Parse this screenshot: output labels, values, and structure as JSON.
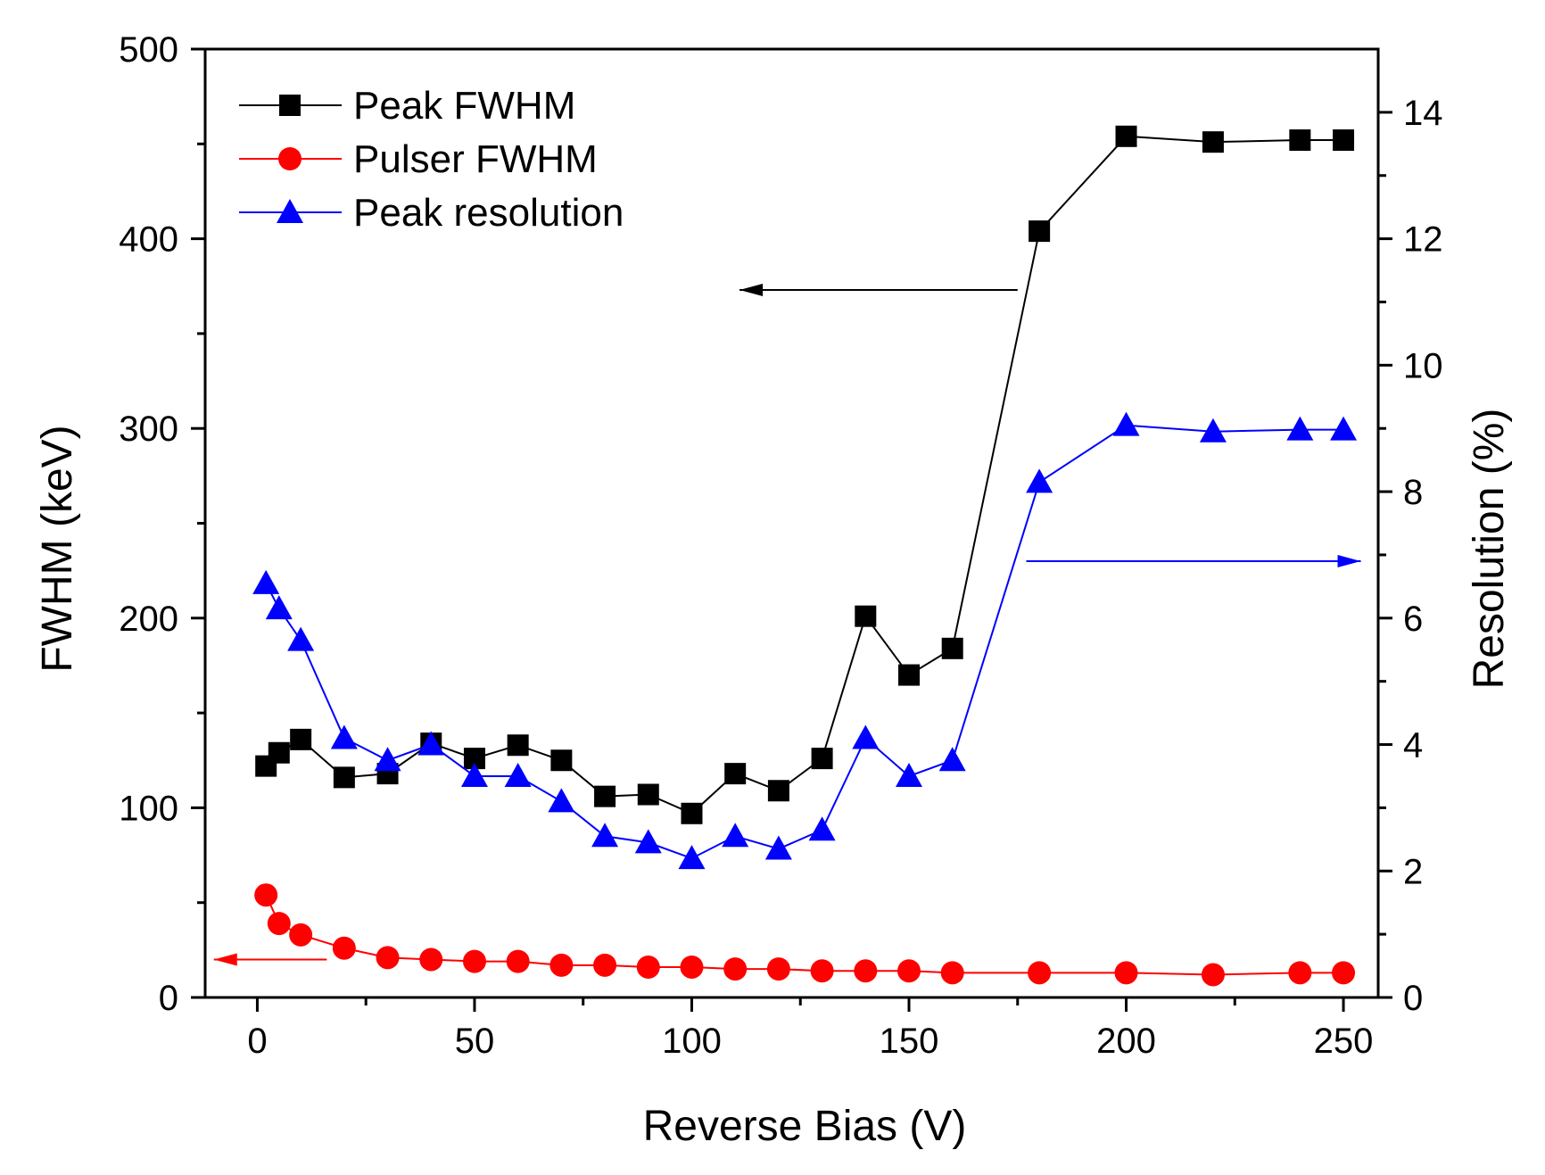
{
  "chart_data": {
    "type": "line",
    "title": "",
    "xlabel": "Reverse Bias (V)",
    "ylabel": "FWHM (keV)",
    "y2label": "Resolution (%)",
    "xlim": [
      -12,
      258
    ],
    "ylim": [
      0,
      500
    ],
    "y2lim": [
      0,
      15
    ],
    "x_ticks": [
      0,
      50,
      100,
      150,
      200,
      250
    ],
    "y_ticks": [
      0,
      100,
      200,
      300,
      400,
      500
    ],
    "y2_ticks": [
      0,
      2,
      4,
      6,
      8,
      10,
      12,
      14
    ],
    "grid": false,
    "legend_position": "top-left",
    "series": [
      {
        "name": "Peak FWHM",
        "axis": "left",
        "color": "#000000",
        "marker": "square",
        "points": [
          [
            2,
            122
          ],
          [
            5,
            129
          ],
          [
            10,
            136
          ],
          [
            20,
            116
          ],
          [
            30,
            118
          ],
          [
            40,
            134
          ],
          [
            50,
            126
          ],
          [
            60,
            133
          ],
          [
            70,
            125
          ],
          [
            80,
            106
          ],
          [
            90,
            107
          ],
          [
            100,
            97
          ],
          [
            110,
            118
          ],
          [
            120,
            109
          ],
          [
            130,
            126
          ],
          [
            140,
            201
          ],
          [
            150,
            170
          ],
          [
            160,
            184
          ],
          [
            180,
            404
          ],
          [
            200,
            454
          ],
          [
            220,
            451
          ],
          [
            240,
            452
          ],
          [
            250,
            452
          ]
        ]
      },
      {
        "name": "Pulser FWHM",
        "axis": "left",
        "color": "#ff0000",
        "marker": "circle",
        "points": [
          [
            2,
            54
          ],
          [
            5,
            39
          ],
          [
            10,
            33
          ],
          [
            20,
            26
          ],
          [
            30,
            21
          ],
          [
            40,
            20
          ],
          [
            50,
            19
          ],
          [
            60,
            19
          ],
          [
            70,
            17
          ],
          [
            80,
            17
          ],
          [
            90,
            16
          ],
          [
            100,
            16
          ],
          [
            110,
            15
          ],
          [
            120,
            15
          ],
          [
            130,
            14
          ],
          [
            140,
            14
          ],
          [
            150,
            14
          ],
          [
            160,
            13
          ],
          [
            180,
            13
          ],
          [
            200,
            13
          ],
          [
            220,
            12
          ],
          [
            240,
            13
          ],
          [
            250,
            13
          ]
        ]
      },
      {
        "name": "Peak resolution",
        "axis": "right",
        "color": "#0000ff",
        "marker": "triangle",
        "points": [
          [
            2,
            6.55
          ],
          [
            5,
            6.15
          ],
          [
            10,
            5.65
          ],
          [
            20,
            4.1
          ],
          [
            30,
            3.75
          ],
          [
            40,
            4.0
          ],
          [
            50,
            3.5
          ],
          [
            60,
            3.5
          ],
          [
            70,
            3.1
          ],
          [
            80,
            2.55
          ],
          [
            90,
            2.45
          ],
          [
            100,
            2.2
          ],
          [
            110,
            2.55
          ],
          [
            120,
            2.35
          ],
          [
            130,
            2.65
          ],
          [
            140,
            4.1
          ],
          [
            150,
            3.5
          ],
          [
            160,
            3.75
          ],
          [
            180,
            8.15
          ],
          [
            200,
            9.05
          ],
          [
            220,
            8.95
          ],
          [
            240,
            8.98
          ],
          [
            250,
            8.98
          ]
        ]
      }
    ],
    "annotations": [
      {
        "type": "arrow",
        "direction": "left",
        "color": "#000000",
        "points_to": "left-axis",
        "from": [
          175,
          373
        ],
        "to": [
          111,
          373
        ]
      },
      {
        "type": "arrow",
        "direction": "right",
        "color": "#0000ff",
        "points_to": "right-axis",
        "from": [
          177,
          6.9
        ],
        "to": [
          254,
          6.9
        ]
      },
      {
        "type": "arrow",
        "direction": "left",
        "color": "#ff0000",
        "points_to": "left-axis",
        "from": [
          16,
          20
        ],
        "to": [
          -10,
          20
        ]
      }
    ]
  }
}
